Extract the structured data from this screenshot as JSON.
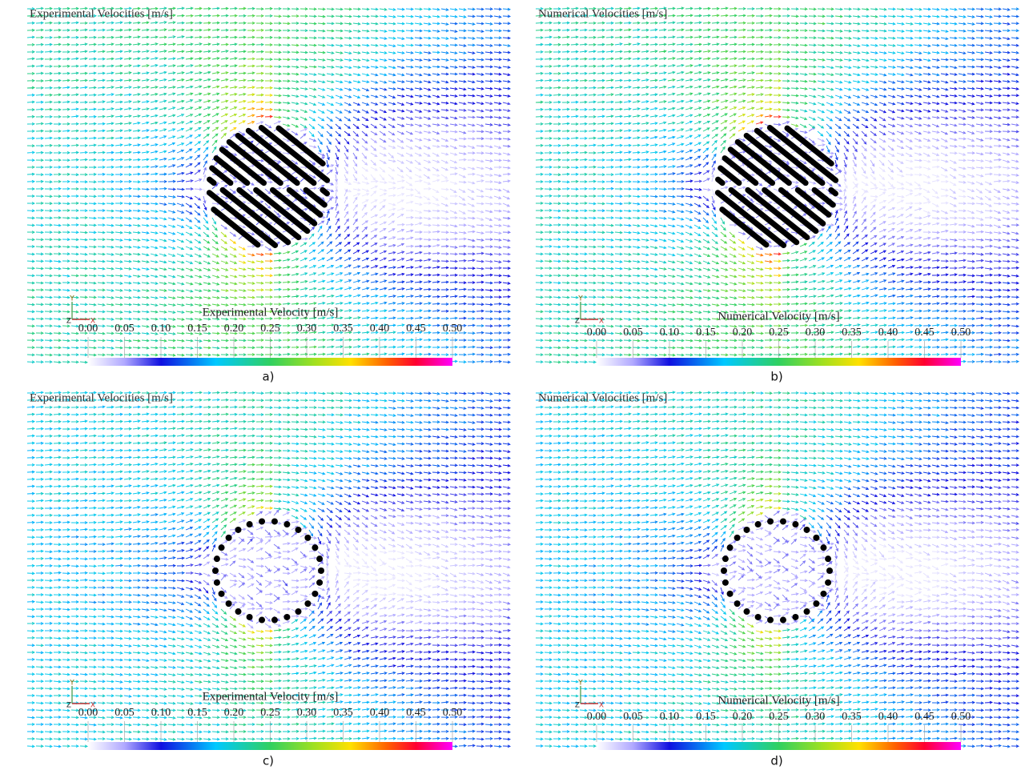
{
  "panels": [
    {
      "title": "Experimental Velocities [m/s]",
      "colorbar": {
        "label": "Experimental Velocity [m/s]",
        "ticks": [
          {
            "value": 0,
            "label": "0.00"
          },
          0.05,
          {
            "value": 0.1,
            "label": "0.10"
          },
          0.15,
          {
            "value": 0.2,
            "label": "0.20"
          },
          0.25,
          {
            "value": 0.3,
            "label": "0.30"
          },
          0.35,
          {
            "value": 0.4,
            "label": "0.40"
          },
          0.45,
          {
            "value": 0.5,
            "label": "0.50"
          }
        ]
      },
      "axis_labels": {
        "y": "Y",
        "z": "Z",
        "x": "X"
      },
      "caption": "a)"
    },
    {
      "title": "Numerical Velocities [m/s]",
      "colorbar": {
        "label": "Numerical Velocity [m/s]",
        "ticks": [
          {
            "value": 0,
            "label": "0.00"
          },
          0.05,
          {
            "value": 0.1,
            "label": "0.10"
          },
          0.15,
          {
            "value": 0.2,
            "label": "0.20"
          },
          0.25,
          {
            "value": 0.3,
            "label": "0.30"
          },
          0.35,
          {
            "value": 0.4,
            "label": "0.40"
          },
          0.45,
          {
            "value": 0.5,
            "label": "0.50"
          }
        ]
      },
      "axis_labels": {
        "y": "Y",
        "z": "Z",
        "x": "X"
      },
      "caption": "b)"
    },
    {
      "title": "Experimental Velocities [m/s]",
      "colorbar": {
        "label": "Experimental Velocity [m/s]",
        "ticks": [
          {
            "value": 0,
            "label": "0.00"
          },
          0.05,
          {
            "value": 0.1,
            "label": "0.10"
          },
          0.15,
          {
            "value": 0.2,
            "label": "0.20"
          },
          0.25,
          {
            "value": 0.3,
            "label": "0.30"
          },
          0.35,
          {
            "value": 0.4,
            "label": "0.40"
          },
          0.45,
          {
            "value": 0.5,
            "label": "0.50"
          }
        ]
      },
      "axis_labels": {
        "y": "Y",
        "z": "Z",
        "x": "X"
      },
      "caption": "c)"
    },
    {
      "title": "Numerical Velocities [m/s]",
      "colorbar": {
        "label": "Numerical Velocity [m/s]",
        "ticks": [
          {
            "value": 0,
            "label": "0.00"
          },
          0.05,
          {
            "value": 0.1,
            "label": "0.10"
          },
          0.15,
          {
            "value": 0.2,
            "label": "0.20"
          },
          0.25,
          {
            "value": 0.3,
            "label": "0.30"
          },
          0.35,
          {
            "value": 0.4,
            "label": "0.40"
          },
          0.45,
          {
            "value": 0.5,
            "label": "0.50"
          }
        ]
      },
      "axis_labels": {
        "y": "Y",
        "z": "Z",
        "x": "X"
      },
      "caption": "d)"
    }
  ]
}
